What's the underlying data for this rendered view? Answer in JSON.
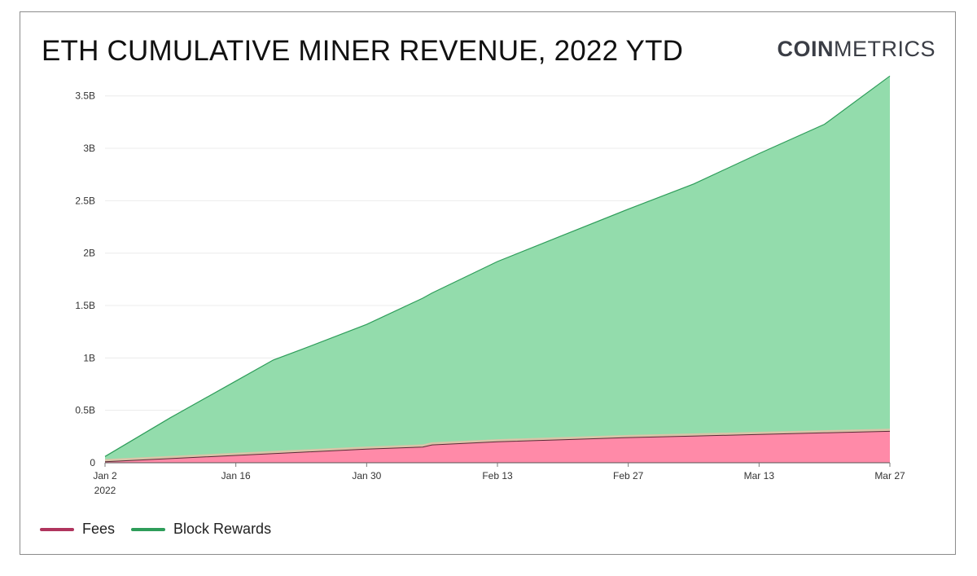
{
  "header": {
    "title": "ETH CUMULATIVE MINER REVENUE, 2022 YTD",
    "logo_bold": "COIN",
    "logo_light": "METRICS"
  },
  "colors": {
    "fees_line": "#b0355e",
    "fees_fill": "#ff8aa8",
    "rewards_line": "#2e9d5a",
    "rewards_fill": "#93dcac",
    "grid": "#ececec",
    "watermark": "#e6ece6"
  },
  "chart_data": {
    "type": "area",
    "stacked": true,
    "x_start": "2022-01-02",
    "x_end": "2022-03-27",
    "x_ticks": [
      {
        "date": "2022-01-02",
        "label": "Jan 2",
        "sublabel": "2022"
      },
      {
        "date": "2022-01-16",
        "label": "Jan 16"
      },
      {
        "date": "2022-01-30",
        "label": "Jan 30"
      },
      {
        "date": "2022-02-13",
        "label": "Feb 13"
      },
      {
        "date": "2022-02-27",
        "label": "Feb 27"
      },
      {
        "date": "2022-03-13",
        "label": "Mar 13"
      },
      {
        "date": "2022-03-27",
        "label": "Mar 27"
      }
    ],
    "y_ticks": [
      {
        "value": 0,
        "label": "0"
      },
      {
        "value": 0.5,
        "label": "0.5B"
      },
      {
        "value": 1,
        "label": "1B"
      },
      {
        "value": 1.5,
        "label": "1.5B"
      },
      {
        "value": 2,
        "label": "2B"
      },
      {
        "value": 2.5,
        "label": "2.5B"
      },
      {
        "value": 3,
        "label": "3B"
      },
      {
        "value": 3.5,
        "label": "3.5B"
      }
    ],
    "ylim": [
      0,
      3.7
    ],
    "y_unit": "B",
    "grid": true,
    "legend_position": "bottom-left",
    "series": [
      {
        "name": "Fees",
        "color_key": "fees",
        "points": [
          [
            "2022-01-02",
            0.01
          ],
          [
            "2022-01-09",
            0.04
          ],
          [
            "2022-01-16",
            0.07
          ],
          [
            "2022-01-23",
            0.1
          ],
          [
            "2022-01-30",
            0.13
          ],
          [
            "2022-02-05",
            0.15
          ],
          [
            "2022-02-06",
            0.17
          ],
          [
            "2022-02-13",
            0.2
          ],
          [
            "2022-02-20",
            0.22
          ],
          [
            "2022-02-27",
            0.24
          ],
          [
            "2022-03-06",
            0.255
          ],
          [
            "2022-03-13",
            0.27
          ],
          [
            "2022-03-20",
            0.285
          ],
          [
            "2022-03-27",
            0.3
          ]
        ]
      },
      {
        "name": "Block Rewards",
        "color_key": "rewards",
        "points": [
          [
            "2022-01-02",
            0.06
          ],
          [
            "2022-01-09",
            0.43
          ],
          [
            "2022-01-16",
            0.78
          ],
          [
            "2022-01-20",
            0.98
          ],
          [
            "2022-01-23",
            1.08
          ],
          [
            "2022-01-30",
            1.32
          ],
          [
            "2022-02-05",
            1.57
          ],
          [
            "2022-02-06",
            1.62
          ],
          [
            "2022-02-13",
            1.92
          ],
          [
            "2022-02-20",
            2.17
          ],
          [
            "2022-02-27",
            2.42
          ],
          [
            "2022-03-06",
            2.66
          ],
          [
            "2022-03-13",
            2.95
          ],
          [
            "2022-03-20",
            3.23
          ],
          [
            "2022-03-27",
            3.69
          ]
        ]
      }
    ]
  }
}
